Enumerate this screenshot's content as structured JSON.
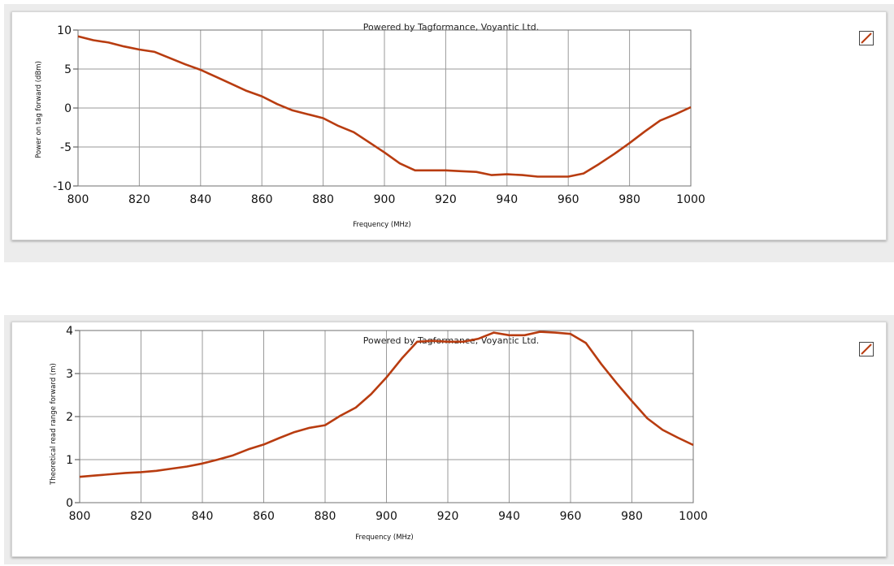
{
  "colors": {
    "series": "#b83c10",
    "grid": "#9a9a9a"
  },
  "chart_data": [
    {
      "type": "line",
      "credit": "Powered by Tagformance, Voyantic Ltd.",
      "xlabel": "Frequency (MHz)",
      "ylabel": "Power on tag forward (dBm)",
      "xlim": [
        800,
        1000
      ],
      "ylim": [
        -10,
        10
      ],
      "xticks": [
        800,
        820,
        840,
        860,
        880,
        900,
        920,
        940,
        960,
        980,
        1000
      ],
      "yticks": [
        10,
        5,
        0,
        -5,
        -10
      ],
      "legend": "top-right",
      "grid": true,
      "series": [
        {
          "x": [
            800,
            805,
            810,
            815,
            820,
            825,
            830,
            835,
            840,
            845,
            850,
            855,
            860,
            865,
            870,
            875,
            880,
            885,
            890,
            895,
            900,
            905,
            910,
            915,
            920,
            925,
            930,
            935,
            940,
            945,
            950,
            955,
            960,
            965,
            970,
            975,
            980,
            985,
            990,
            995,
            1000
          ],
          "y": [
            9.2,
            8.7,
            8.4,
            7.9,
            7.5,
            7.2,
            6.4,
            5.6,
            4.9,
            4.0,
            3.1,
            2.2,
            1.5,
            0.5,
            -0.3,
            -0.8,
            -1.3,
            -2.3,
            -3.1,
            -4.4,
            -5.7,
            -7.1,
            -8.0,
            -8.0,
            -8.0,
            -8.1,
            -8.2,
            -8.6,
            -8.5,
            -8.6,
            -8.8,
            -8.8,
            -8.8,
            -8.4,
            -7.2,
            -5.9,
            -4.5,
            -3.0,
            -1.6,
            -0.8,
            0.1
          ]
        }
      ]
    },
    {
      "type": "line",
      "credit": "Powered by Tagformance, Voyantic Ltd.",
      "xlabel": "Frequency (MHz)",
      "ylabel": "Theoretical read range forward (m)",
      "xlim": [
        800,
        1000
      ],
      "ylim": [
        0,
        4
      ],
      "xticks": [
        800,
        820,
        840,
        860,
        880,
        900,
        920,
        940,
        960,
        980,
        1000
      ],
      "yticks": [
        4,
        3,
        2,
        1,
        0
      ],
      "legend": "top-right",
      "grid": true,
      "series": [
        {
          "x": [
            800,
            805,
            810,
            815,
            820,
            825,
            830,
            835,
            840,
            845,
            850,
            855,
            860,
            865,
            870,
            875,
            880,
            885,
            890,
            895,
            900,
            905,
            910,
            915,
            920,
            925,
            930,
            935,
            940,
            945,
            950,
            955,
            960,
            965,
            970,
            975,
            980,
            985,
            990,
            995,
            1000
          ],
          "y": [
            0.6,
            0.63,
            0.66,
            0.69,
            0.71,
            0.74,
            0.79,
            0.84,
            0.91,
            1.0,
            1.1,
            1.24,
            1.35,
            1.5,
            1.64,
            1.74,
            1.8,
            2.02,
            2.21,
            2.52,
            2.91,
            3.35,
            3.74,
            3.76,
            3.74,
            3.74,
            3.81,
            3.95,
            3.89,
            3.89,
            3.97,
            3.95,
            3.92,
            3.71,
            3.22,
            2.78,
            2.36,
            1.96,
            1.69,
            1.51,
            1.34
          ]
        }
      ]
    }
  ]
}
